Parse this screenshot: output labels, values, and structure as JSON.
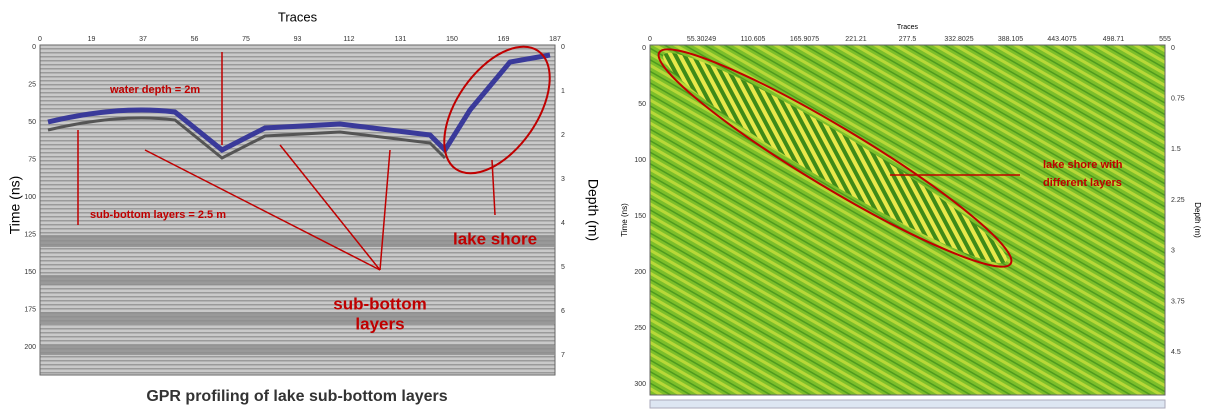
{
  "left_panel": {
    "x_title": "Traces",
    "x_ticks": [
      "0",
      "19",
      "37",
      "56",
      "75",
      "93",
      "112",
      "131",
      "150",
      "169",
      "187"
    ],
    "y_ticks": [
      "0",
      "25",
      "50",
      "75",
      "100",
      "125",
      "150",
      "175",
      "200"
    ],
    "depth_ticks": [
      "0",
      "1",
      "2",
      "3",
      "4",
      "5",
      "6",
      "7"
    ],
    "y_label": "Time (ns)",
    "depth_label": "Depth (m)",
    "annotations": {
      "water_depth": "water depth = 2m",
      "sub_bottom_depth": "sub-bottom layers = 2.5 m",
      "lake_shore": "lake shore",
      "sub_bottom": [
        "sub-bottom",
        "layers"
      ]
    },
    "caption": "GPR profiling of lake sub-bottom layers"
  },
  "right_panel": {
    "x_title": "Traces",
    "x_ticks": [
      "0",
      "55.30249",
      "110.605",
      "165.9075",
      "221.21",
      "277.5",
      "332.8025",
      "388.105",
      "443.4075",
      "498.71",
      "555"
    ],
    "y_ticks": [
      "0",
      "50",
      "100",
      "150",
      "200",
      "250",
      "300"
    ],
    "depth_ticks": [
      "0",
      "0.75",
      "1.5",
      "2.25",
      "3",
      "3.75",
      "4.5"
    ],
    "y_label": "Time (ns)",
    "depth_label": "Depth (m)",
    "annotation": [
      "lake shore with",
      "different layers"
    ]
  }
}
